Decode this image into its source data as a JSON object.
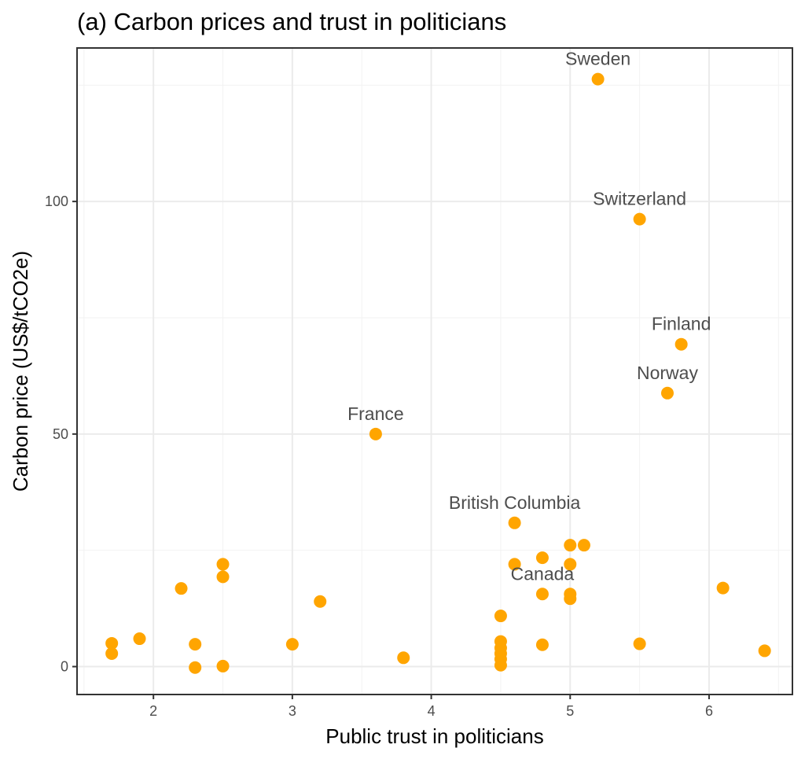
{
  "chart_data": {
    "type": "scatter",
    "title": "(a) Carbon prices and trust in politicians",
    "xlabel": "Public trust in politicians",
    "ylabel": "Carbon price (US$/tCO2e)",
    "xlim": [
      1.45,
      6.6
    ],
    "ylim": [
      -6,
      133
    ],
    "xticks": [
      2,
      3,
      4,
      5,
      6
    ],
    "yticks": [
      0,
      50,
      100
    ],
    "grid": true,
    "point_color": "#FFA500",
    "points": [
      {
        "x": 5.2,
        "y": 126.3,
        "label": "Sweden"
      },
      {
        "x": 5.5,
        "y": 96.2,
        "label": "Switzerland"
      },
      {
        "x": 5.8,
        "y": 69.3,
        "label": "Finland"
      },
      {
        "x": 5.7,
        "y": 58.8,
        "label": "Norway"
      },
      {
        "x": 3.6,
        "y": 50.0,
        "label": "France"
      },
      {
        "x": 4.6,
        "y": 30.9,
        "label": "British Columbia"
      },
      {
        "x": 4.8,
        "y": 15.6,
        "label": "Canada"
      },
      {
        "x": 1.7,
        "y": 5.0
      },
      {
        "x": 1.7,
        "y": 2.8
      },
      {
        "x": 1.9,
        "y": 6.0
      },
      {
        "x": 2.2,
        "y": 16.8
      },
      {
        "x": 2.3,
        "y": 4.8
      },
      {
        "x": 2.3,
        "y": -0.2
      },
      {
        "x": 2.5,
        "y": 22.0
      },
      {
        "x": 2.5,
        "y": 19.3
      },
      {
        "x": 2.5,
        "y": 0.1
      },
      {
        "x": 3.0,
        "y": 4.8
      },
      {
        "x": 3.2,
        "y": 14.0
      },
      {
        "x": 3.8,
        "y": 1.9
      },
      {
        "x": 4.5,
        "y": 10.9
      },
      {
        "x": 4.5,
        "y": 5.4
      },
      {
        "x": 4.5,
        "y": 4.0
      },
      {
        "x": 4.5,
        "y": 2.8
      },
      {
        "x": 4.5,
        "y": 1.6
      },
      {
        "x": 4.5,
        "y": 0.3
      },
      {
        "x": 4.6,
        "y": 22.0
      },
      {
        "x": 4.8,
        "y": 23.4
      },
      {
        "x": 4.8,
        "y": 4.7
      },
      {
        "x": 5.0,
        "y": 26.1
      },
      {
        "x": 5.0,
        "y": 22.0
      },
      {
        "x": 5.0,
        "y": 15.6
      },
      {
        "x": 5.0,
        "y": 14.6
      },
      {
        "x": 5.1,
        "y": 26.1
      },
      {
        "x": 5.5,
        "y": 4.9
      },
      {
        "x": 6.1,
        "y": 16.9
      },
      {
        "x": 6.4,
        "y": 3.4
      }
    ]
  }
}
